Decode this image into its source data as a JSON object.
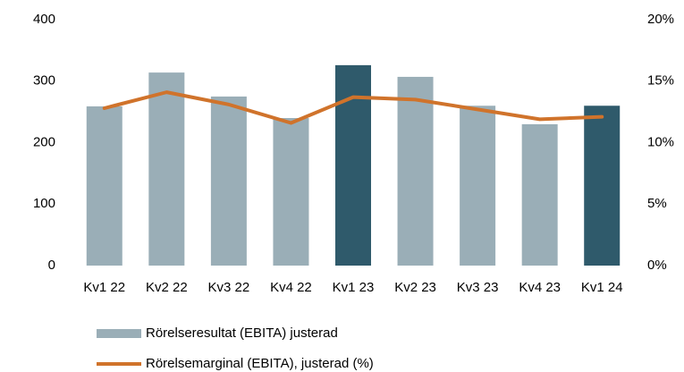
{
  "chart_data": {
    "type": "bar",
    "categories": [
      "Kv1 22",
      "Kv2 22",
      "Kv3 22",
      "Kv4 22",
      "Kv1 23",
      "Kv2 23",
      "Kv3 23",
      "Kv4 23",
      "Kv1 24"
    ],
    "series": [
      {
        "name": "Rörelseresultat (EBITA) justerad",
        "type": "bar",
        "color": "#9aaeb7",
        "colors": [
          "#9aaeb7",
          "#9aaeb7",
          "#9aaeb7",
          "#9aaeb7",
          "#2f5a6b",
          "#9aaeb7",
          "#9aaeb7",
          "#9aaeb7",
          "#2f5a6b"
        ],
        "values": [
          259,
          314,
          275,
          240,
          326,
          307,
          260,
          230,
          260
        ]
      },
      {
        "name": "Rörelsemarginal (EBITA), justerad (%)",
        "type": "line",
        "axis": "y2",
        "color": "#d0732b",
        "values": [
          12.8,
          14.1,
          13.1,
          11.6,
          13.7,
          13.5,
          12.7,
          11.9,
          12.1
        ]
      }
    ],
    "ylim": [
      0,
      400
    ],
    "yticks": [
      0,
      100,
      200,
      300,
      400
    ],
    "y2lim": [
      0,
      20
    ],
    "y2ticks": [
      {
        "value": 0,
        "label": "0%"
      },
      {
        "value": 5,
        "label": "5%"
      },
      {
        "value": 10,
        "label": "10%"
      },
      {
        "value": 15,
        "label": "15%"
      },
      {
        "value": 20,
        "label": "20%"
      }
    ]
  }
}
